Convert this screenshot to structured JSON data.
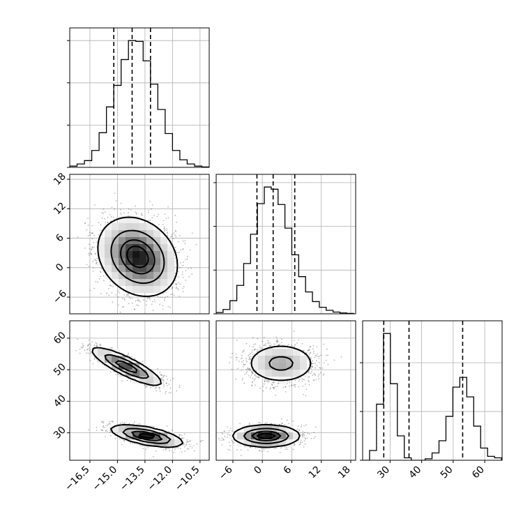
{
  "chart_data": {
    "type": "corner",
    "title": "",
    "parameters": [
      {
        "index": 0,
        "label": "",
        "range": [
          -17.6,
          -10.0
        ],
        "ticks": [
          -16.5,
          -15.0,
          -13.5,
          -12.0,
          -10.5
        ],
        "tick_labels": [
          "−16.5",
          "−15.0",
          "−13.5",
          "−12.0",
          "−10.5"
        ],
        "quantiles": [
          -15.2,
          -14.2,
          -13.2
        ]
      },
      {
        "index": 1,
        "label": "",
        "range": [
          -9.4,
          19.0
        ],
        "ticks": [
          -6,
          0,
          6,
          12,
          18
        ],
        "tick_labels": [
          "−6",
          "0",
          "6",
          "12",
          "18"
        ],
        "quantiles": [
          -1.1,
          2.2,
          6.6
        ]
      },
      {
        "index": 2,
        "label": "",
        "range": [
          21.3,
          65.5
        ],
        "ticks": [
          30,
          40,
          50,
          60
        ],
        "tick_labels": [
          "30",
          "40",
          "50",
          "60"
        ],
        "quantiles": [
          28.0,
          36.0,
          53.0
        ]
      }
    ],
    "histograms": [
      {
        "param": 0,
        "bin_edges": [
          -17.6,
          -17.2,
          -16.8,
          -16.4,
          -16.0,
          -15.6,
          -15.2,
          -14.8,
          -14.4,
          -14.0,
          -13.6,
          -13.2,
          -12.8,
          -12.4,
          -12.0,
          -11.6,
          -11.2,
          -10.8,
          -10.4,
          -10.0
        ],
        "counts": [
          3,
          8,
          16,
          40,
          82,
          143,
          194,
          255,
          300,
          298,
          252,
          197,
          137,
          80,
          40,
          18,
          8,
          3,
          1
        ]
      },
      {
        "param": 1,
        "bin_edges": [
          -9.4,
          -8.0,
          -6.6,
          -5.2,
          -3.8,
          -2.4,
          -1.0,
          0.4,
          1.8,
          3.2,
          4.6,
          6.0,
          7.4,
          8.8,
          10.2,
          11.6,
          13.0,
          14.4,
          15.8,
          17.2,
          18.6
        ],
        "counts": [
          3,
          10,
          30,
          65,
          115,
          182,
          252,
          290,
          285,
          250,
          196,
          135,
          85,
          50,
          28,
          15,
          8,
          4,
          2,
          1
        ]
      },
      {
        "param": 2,
        "bin_edges": [
          21.3,
          23.5,
          25.7,
          27.9,
          30.1,
          32.3,
          34.5,
          36.7,
          38.9,
          41.1,
          43.3,
          45.5,
          47.7,
          49.9,
          52.1,
          54.3,
          56.5,
          58.7,
          60.9,
          63.1,
          65.3
        ],
        "counts": [
          0,
          20,
          115,
          260,
          157,
          50,
          5,
          0,
          0,
          3,
          15,
          40,
          90,
          150,
          170,
          130,
          70,
          25,
          8,
          5
        ]
      }
    ],
    "panels_2d": [
      {
        "x_param": 0,
        "y_param": 1,
        "components": [
          {
            "mean": [
              -13.9,
              2.2
            ],
            "sd": [
              1.05,
              3.9
            ],
            "rho": -0.22,
            "weight": 1.0
          }
        ]
      },
      {
        "x_param": 0,
        "y_param": 2,
        "components": [
          {
            "mean": [
              -14.5,
              51.0
            ],
            "sd": [
              0.95,
              3.0
            ],
            "rho": -0.85,
            "weight": 0.5
          },
          {
            "mean": [
              -13.4,
              29.0
            ],
            "sd": [
              0.95,
              1.7
            ],
            "rho": -0.6,
            "weight": 0.5
          }
        ]
      },
      {
        "x_param": 1,
        "y_param": 2,
        "components": [
          {
            "mean": [
              3.8,
              52.0
            ],
            "sd": [
              3.6,
              3.2
            ],
            "rho": 0.0,
            "weight": 0.5
          },
          {
            "mean": [
              0.8,
              29.0
            ],
            "sd": [
              3.3,
              1.7
            ],
            "rho": 0.0,
            "weight": 0.5
          }
        ]
      }
    ],
    "contour_levels": [
      0.12,
      0.39,
      0.68,
      0.86
    ],
    "grid": true
  }
}
